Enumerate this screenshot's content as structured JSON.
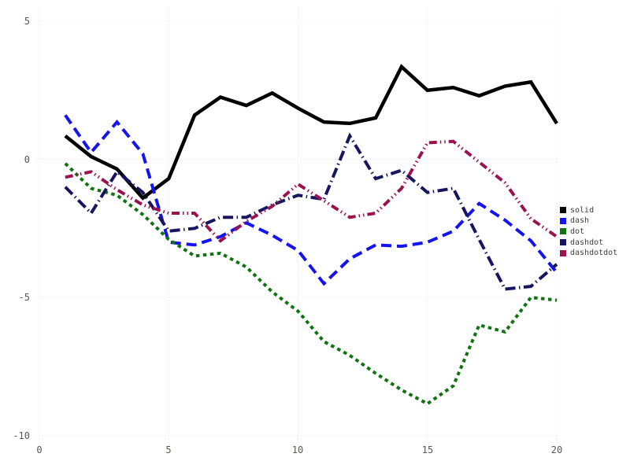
{
  "chart_data": {
    "type": "line",
    "title": "",
    "xlabel": "",
    "ylabel": "",
    "grid": "dotted",
    "legend_position": "right-outside",
    "xlim": [
      0,
      20.3
    ],
    "ylim": [
      -10.4,
      5.2
    ],
    "xticks": [
      "0",
      "5",
      "10",
      "15",
      "20"
    ],
    "yticks": [
      "5",
      "0",
      "-5",
      "-10"
    ],
    "xtick_values": [
      0,
      5,
      10,
      15,
      20
    ],
    "ytick_values": [
      5,
      0,
      -5,
      -10
    ],
    "x": [
      1,
      2,
      3,
      4,
      5,
      6,
      7,
      8,
      9,
      10,
      11,
      12,
      13,
      14,
      15,
      16,
      17,
      18,
      19,
      20
    ],
    "series": [
      {
        "name": "solid",
        "color": "#000000",
        "dash": "solid",
        "values": [
          0.85,
          0.1,
          -0.35,
          -1.4,
          -0.7,
          1.6,
          2.25,
          1.95,
          2.4,
          1.85,
          1.35,
          1.3,
          1.5,
          3.35,
          2.5,
          2.6,
          2.3,
          2.65,
          2.8,
          1.3
        ]
      },
      {
        "name": "dash",
        "color": "#1414f0",
        "dash": "dash",
        "values": [
          1.6,
          0.25,
          1.35,
          0.2,
          -3.0,
          -3.1,
          -2.8,
          -2.3,
          -2.75,
          -3.3,
          -4.5,
          -3.6,
          -3.1,
          -3.15,
          -3.0,
          -2.6,
          -1.6,
          -2.2,
          -2.95,
          -4.1
        ]
      },
      {
        "name": "dot",
        "color": "#0f730f",
        "dash": "dot",
        "values": [
          -0.15,
          -1.05,
          -1.3,
          -2.0,
          -2.9,
          -3.5,
          -3.4,
          -3.9,
          -4.8,
          -5.5,
          -6.6,
          -7.1,
          -7.75,
          -8.35,
          -8.85,
          -8.2,
          -6.0,
          -6.25,
          -5.0,
          -5.1
        ]
      },
      {
        "name": "dashdot",
        "color": "#161660",
        "dash": "dashdot",
        "values": [
          -1.0,
          -1.95,
          -0.45,
          -1.2,
          -2.6,
          -2.5,
          -2.1,
          -2.1,
          -1.65,
          -1.3,
          -1.45,
          0.85,
          -0.7,
          -0.4,
          -1.2,
          -1.05,
          -2.9,
          -4.7,
          -4.6,
          -3.8
        ]
      },
      {
        "name": "dashdotdot",
        "color": "#9a1350",
        "dash": "dashdotdot",
        "values": [
          -0.65,
          -0.45,
          -1.1,
          -1.65,
          -1.95,
          -1.95,
          -2.95,
          -2.25,
          -1.7,
          -0.9,
          -1.5,
          -2.1,
          -1.95,
          -1.05,
          0.6,
          0.65,
          -0.1,
          -0.85,
          -2.15,
          -2.8
        ]
      }
    ],
    "gridline_color": "#e1e1ec",
    "tick_label_color": "#5c5652",
    "legend_text_color": "#3d3d3d"
  }
}
